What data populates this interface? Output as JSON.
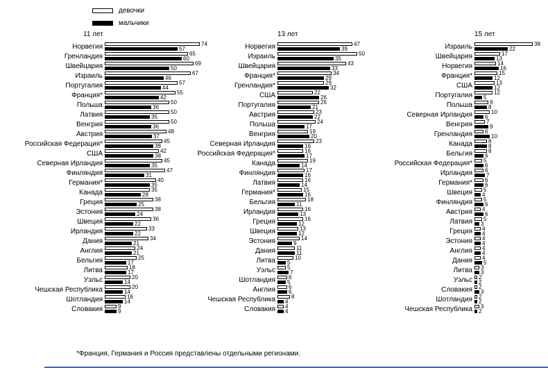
{
  "footnote": "*Франция, Германия и Россия представлены отдельными регионами.",
  "chart_data": {
    "type": "bar",
    "orientation": "horizontal",
    "grid": false,
    "legend_position": "top-left",
    "legend": [
      {
        "label": "девочки",
        "color": "#ffffff"
      },
      {
        "label": "мальчики",
        "color": "#000000"
      }
    ],
    "colors": {
      "girls_fill": "#ffffff",
      "boys_fill": "#000000",
      "outline": "#000000",
      "bottom_edge_line": "#4468b4"
    },
    "footnote": "*Франция, Германия и Россия представлены отдельными регионами.",
    "panels": [
      {
        "title": "11 лет",
        "xlim": [
          0,
          80
        ],
        "bar_scale": 1.85,
        "rows": [
          {
            "country": "Норвегия",
            "girls": 74,
            "boys": 57
          },
          {
            "country": "Гренландия",
            "girls": 65,
            "boys": 60
          },
          {
            "country": "Швейцария",
            "girls": 69,
            "boys": 50
          },
          {
            "country": "Израиль",
            "girls": 67,
            "boys": 46
          },
          {
            "country": "Португалия",
            "girls": 57,
            "boys": 44
          },
          {
            "country": "Франция*",
            "girls": 55,
            "boys": 42
          },
          {
            "country": "Польша",
            "girls": 50,
            "boys": 36
          },
          {
            "country": "Латвия",
            "girls": 50,
            "boys": 35
          },
          {
            "country": "Венгрия",
            "girls": 50,
            "boys": 36
          },
          {
            "country": "Австрия",
            "girls": 48,
            "boys": 37
          },
          {
            "country": "Российская Федерация*",
            "girls": 45,
            "boys": 38
          },
          {
            "country": "США",
            "girls": 42,
            "boys": 38
          },
          {
            "country": "Северная Ирландия",
            "girls": 45,
            "boys": 35
          },
          {
            "country": "Финляндия",
            "girls": 47,
            "boys": 31
          },
          {
            "country": "Германия*",
            "girls": 40,
            "boys": 35
          },
          {
            "country": "Канада",
            "girls": 35,
            "boys": 28
          },
          {
            "country": "Греция",
            "girls": 38,
            "boys": 25
          },
          {
            "country": "Эстония",
            "girls": 38,
            "boys": 24
          },
          {
            "country": "Швеция",
            "girls": 36,
            "boys": 22
          },
          {
            "country": "Ирландия",
            "girls": 33,
            "boys": 22
          },
          {
            "country": "Дания",
            "girls": 34,
            "boys": 21
          },
          {
            "country": "Англия",
            "girls": 24,
            "boys": 21
          },
          {
            "country": "Бельгия",
            "girls": 25,
            "boys": 17
          },
          {
            "country": "Литва",
            "girls": 18,
            "boys": 17
          },
          {
            "country": "Уэльс",
            "girls": 20,
            "boys": 14
          },
          {
            "country": "Чешская Республика",
            "girls": 20,
            "boys": 14
          },
          {
            "country": "Шотландия",
            "girls": 16,
            "boys": 14
          },
          {
            "country": "Словакия",
            "girls": 9,
            "boys": 9
          }
        ]
      },
      {
        "title": "13 лет",
        "xlim": [
          0,
          55
        ],
        "bar_scale": 2.3,
        "rows": [
          {
            "country": "Норвегия",
            "girls": 47,
            "boys": 39
          },
          {
            "country": "Израиль",
            "girls": 50,
            "boys": 35
          },
          {
            "country": "Швейцария",
            "girls": 43,
            "boys": 33
          },
          {
            "country": "Франция*",
            "girls": 34,
            "boys": 29
          },
          {
            "country": "Гренландия*",
            "girls": 29,
            "boys": 32
          },
          {
            "country": "США",
            "girls": 22,
            "boys": 26
          },
          {
            "country": "Португалия",
            "girls": 26,
            "boys": 21
          },
          {
            "country": "Австрия",
            "girls": 23,
            "boys": 22
          },
          {
            "country": "Польша",
            "girls": 24,
            "boys": 17
          },
          {
            "country": "Венгрия",
            "girls": 19,
            "boys": 20
          },
          {
            "country": "Северная Ирландия",
            "girls": 23,
            "boys": 16
          },
          {
            "country": "Российская Федерация*",
            "girls": 16,
            "boys": 17
          },
          {
            "country": "Канада",
            "girls": 19,
            "boys": 14
          },
          {
            "country": "Финляндия",
            "girls": 17,
            "boys": 16
          },
          {
            "country": "Латвия",
            "girls": 16,
            "boys": 14
          },
          {
            "country": "Германия*",
            "girls": 15,
            "boys": 16
          },
          {
            "country": "Бельгия",
            "girls": 18,
            "boys": 11
          },
          {
            "country": "Ирландия",
            "girls": 16,
            "boys": 13
          },
          {
            "country": "Греция",
            "girls": 16,
            "boys": 12
          },
          {
            "country": "Швеция",
            "girls": 13,
            "boys": 12
          },
          {
            "country": "Эстония",
            "girls": 14,
            "boys": 9
          },
          {
            "country": "Дания",
            "girls": 11,
            "boys": 11
          },
          {
            "country": "Литва",
            "girls": 10,
            "boys": 5
          },
          {
            "country": "Уэльс",
            "girls": 5,
            "boys": 7
          },
          {
            "country": "Шотландия",
            "girls": 6,
            "boys": 5
          },
          {
            "country": "Англия",
            "girls": 6,
            "boys": 6
          },
          {
            "country": "Чешская Республика",
            "girls": 8,
            "boys": 4
          },
          {
            "country": "Словакия",
            "girls": 4,
            "boys": 4
          }
        ]
      },
      {
        "title": "15 лет",
        "xlim": [
          0,
          40
        ],
        "bar_scale": 2.2,
        "rows": [
          {
            "country": "Израиль",
            "girls": 38,
            "boys": 22
          },
          {
            "country": "Швейцария",
            "girls": 17,
            "boys": 13
          },
          {
            "country": "Норвегия",
            "girls": 14,
            "boys": 16
          },
          {
            "country": "Франция*",
            "girls": 15,
            "boys": 12
          },
          {
            "country": "США",
            "girls": 13,
            "boys": 12
          },
          {
            "country": "Португалия",
            "girls": 12,
            "boys": 5
          },
          {
            "country": "Польша",
            "girls": 9,
            "boys": 8
          },
          {
            "country": "Северная Ирландия",
            "girls": 10,
            "boys": 6
          },
          {
            "country": "Венгрия",
            "girls": 7,
            "boys": 9
          },
          {
            "country": "Гренландия",
            "girls": 6,
            "boys": 10
          },
          {
            "country": "Канада",
            "girls": 8,
            "boys": 8
          },
          {
            "country": "Бельгия",
            "girls": 8,
            "boys": 6
          },
          {
            "country": "Российская Федерация*",
            "girls": 5,
            "boys": 6
          },
          {
            "country": "Ирландия",
            "girls": 6,
            "boys": 7
          },
          {
            "country": "Германия*",
            "girls": 6,
            "boys": 6
          },
          {
            "country": "Швеция",
            "girls": 5,
            "boys": 4
          },
          {
            "country": "Финляндия",
            "girls": 5,
            "boys": 6
          },
          {
            "country": "Австрия",
            "girls": 4,
            "boys": 6
          },
          {
            "country": "Латвия",
            "girls": 5,
            "boys": 3
          },
          {
            "country": "Греция",
            "girls": 4,
            "boys": 4
          },
          {
            "country": "Эстония",
            "girls": 4,
            "boys": 4
          },
          {
            "country": "Англия",
            "girls": 4,
            "boys": 4
          },
          {
            "country": "Дания",
            "girls": 4,
            "boys": 5
          },
          {
            "country": "Литва",
            "girls": 3,
            "boys": 3
          },
          {
            "country": "Уэльс",
            "girls": 2,
            "boys": 2
          },
          {
            "country": "Словакия",
            "girls": 2,
            "boys": 3
          },
          {
            "country": "Шотландия",
            "girls": 2,
            "boys": 2
          },
          {
            "country": "Чешская Республика",
            "girls": 3,
            "boys": 2
          }
        ]
      }
    ]
  }
}
